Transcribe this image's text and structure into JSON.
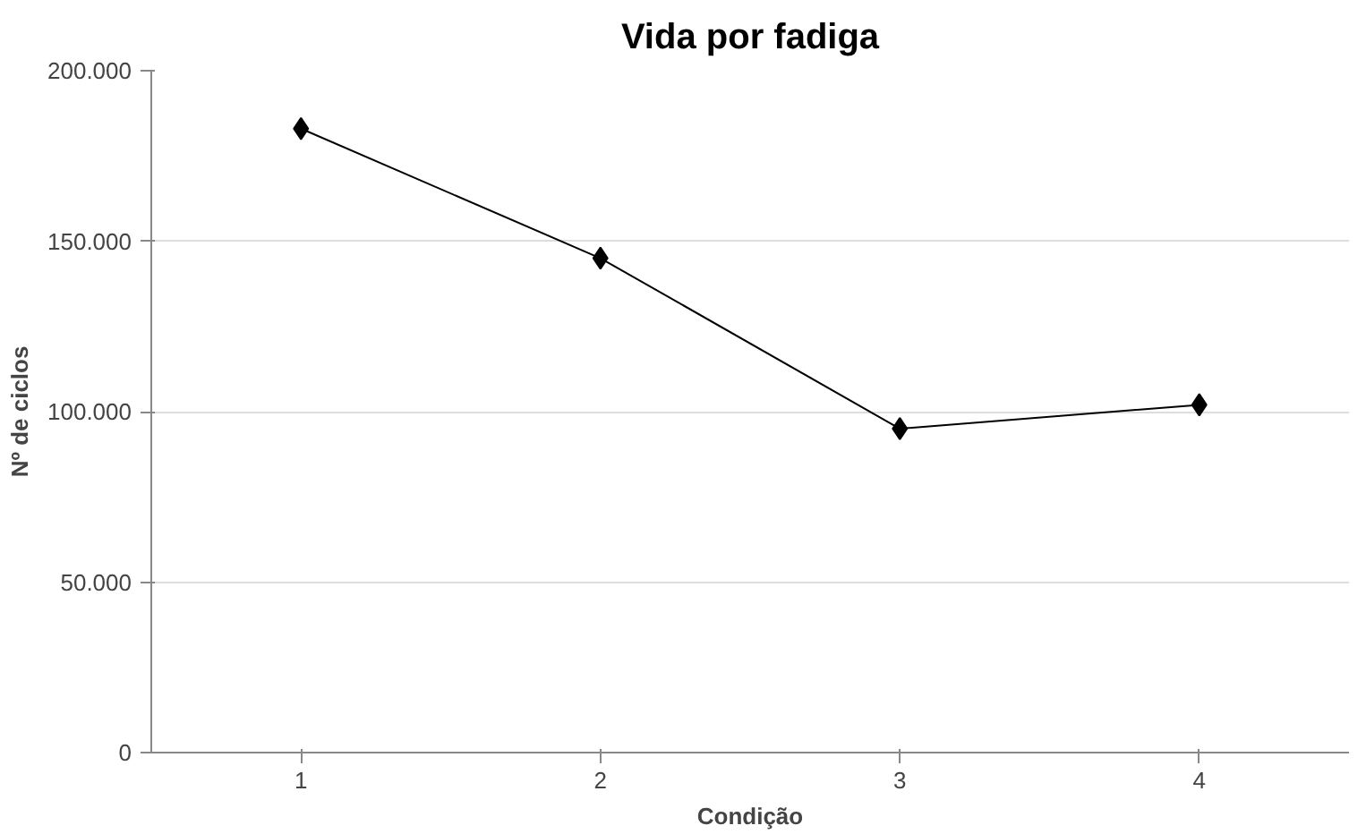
{
  "chart_data": {
    "type": "line",
    "title": "Vida por fadiga",
    "xlabel": "Condição",
    "ylabel": "Nº de ciclos",
    "categories": [
      "1",
      "2",
      "3",
      "4"
    ],
    "series": [
      {
        "color": "#000000",
        "values": [
          183000,
          145000,
          95000,
          102000
        ]
      }
    ],
    "ylim": [
      0,
      200000
    ],
    "yticks": [
      {
        "value": 0,
        "label": "0"
      },
      {
        "value": 50000,
        "label": "50.000"
      },
      {
        "value": 100000,
        "label": "100.000"
      },
      {
        "value": 150000,
        "label": "150.000"
      },
      {
        "value": 200000,
        "label": "200.000"
      }
    ],
    "grid": "y",
    "marker": "diamond",
    "line_style": "solid"
  }
}
